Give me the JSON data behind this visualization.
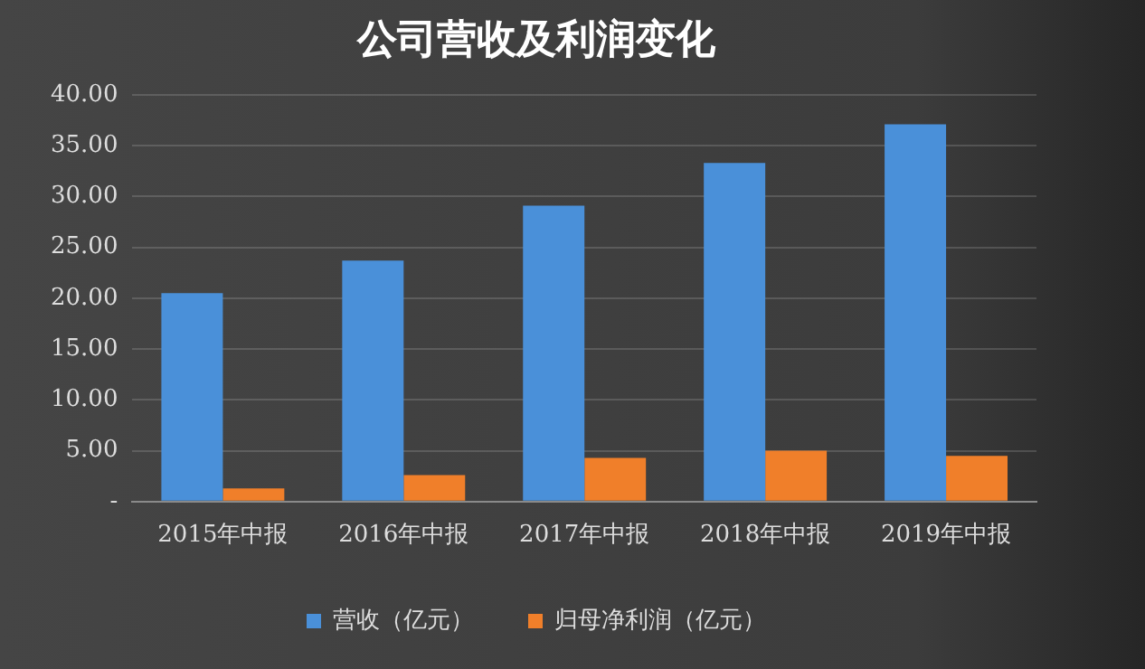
{
  "chart_data": {
    "type": "bar",
    "title": "公司营收及利润变化",
    "categories": [
      "2015年中报",
      "2016年中报",
      "2017年中报",
      "2018年中报",
      "2019年中报"
    ],
    "series": [
      {
        "name": "营收（亿元）",
        "color": "#4a90d9",
        "values": [
          20.5,
          23.7,
          29.1,
          33.3,
          37.1
        ]
      },
      {
        "name": "归母净利润（亿元）",
        "color": "#f07f2a",
        "values": [
          1.3,
          2.6,
          4.3,
          5.0,
          4.5
        ]
      }
    ],
    "ylim": [
      0,
      40
    ],
    "yticks": [
      {
        "value": 0,
        "label": "-"
      },
      {
        "value": 5,
        "label": "5.00"
      },
      {
        "value": 10,
        "label": "10.00"
      },
      {
        "value": 15,
        "label": "15.00"
      },
      {
        "value": 20,
        "label": "20.00"
      },
      {
        "value": 25,
        "label": "25.00"
      },
      {
        "value": 30,
        "label": "30.00"
      },
      {
        "value": 35,
        "label": "35.00"
      },
      {
        "value": 40,
        "label": "40.00"
      }
    ],
    "grid": "y",
    "legend": "bottom"
  }
}
